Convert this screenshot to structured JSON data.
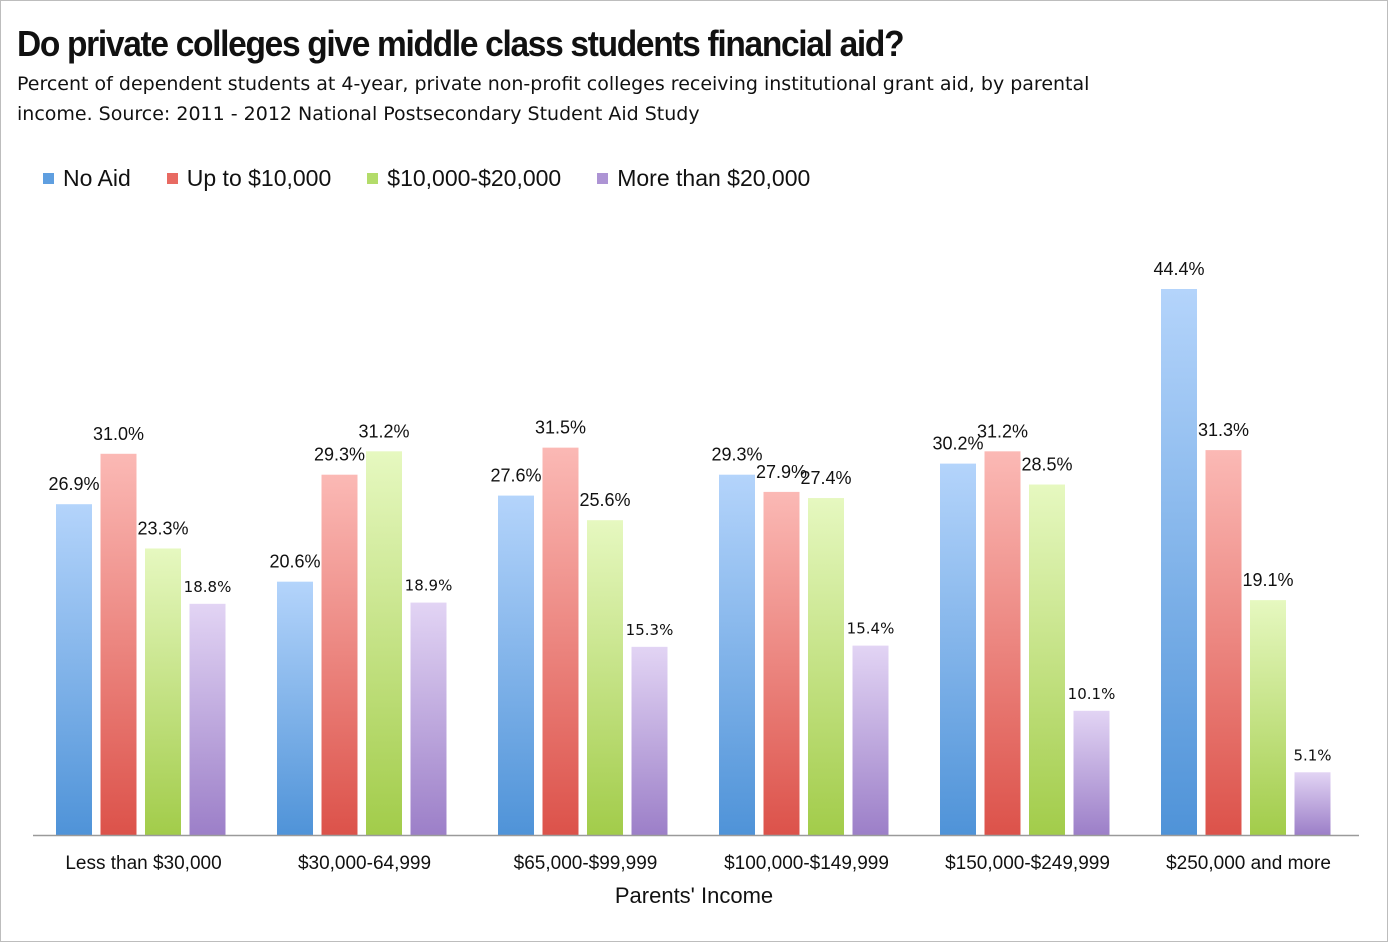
{
  "title": "Do private colleges give middle class students financial aid?",
  "subtitle": "Percent of dependent students at 4-year, private non-profit colleges receiving institutional grant aid, by parental income. Source: 2011 - 2012 National Postsecondary Student Aid Study",
  "chart_data": {
    "type": "bar",
    "title": "Do private colleges give middle class students financial aid?",
    "subtitle": "Percent of dependent students at 4-year, private non-profit colleges receiving institutional grant aid, by parental income. Source: 2011 - 2012 National Postsecondary Student Aid Study",
    "xlabel": "Parents' Income",
    "ylabel": "",
    "ylim": [
      0,
      50
    ],
    "grid": false,
    "legend_position": "top-left",
    "categories": [
      "Less than $30,000",
      "$30,000-64,999",
      "$65,000-$99,999",
      "$100,000-$149,999",
      "$150,000-$249,999",
      "$250,000 and more"
    ],
    "series": [
      {
        "name": "No Aid",
        "color_top": "#b4d4fb",
        "color_bottom": "#4f93d8",
        "values": [
          26.9,
          20.6,
          27.6,
          29.3,
          30.2,
          44.4
        ],
        "labels": [
          "26.9%",
          "20.6%",
          "27.6%",
          "29.3%",
          "30.2%",
          "44.4%"
        ]
      },
      {
        "name": "Up to $10,000",
        "color_top": "#fbb9b5",
        "color_bottom": "#dc524a",
        "values": [
          31.0,
          29.3,
          31.5,
          27.9,
          31.2,
          31.3
        ],
        "labels": [
          "31.0%",
          "29.3%",
          "31.5%",
          "27.9%",
          "31.2%",
          "31.3%"
        ]
      },
      {
        "name": "$10,000-$20,000",
        "color_top": "#e6f8c0",
        "color_bottom": "#a2cc4a",
        "values": [
          23.3,
          31.2,
          25.6,
          27.4,
          28.5,
          19.1
        ],
        "labels": [
          "23.3%",
          "31.2%",
          "25.6%",
          "27.4%",
          "28.5%",
          "19.1%"
        ]
      },
      {
        "name": "More than $20,000",
        "color_top": "#e2d4f4",
        "color_bottom": "#9c7fc8",
        "values": [
          18.8,
          18.9,
          15.3,
          15.4,
          10.1,
          5.1
        ],
        "labels": [
          "18.8%",
          "18.9%",
          "15.3%",
          "15.4%",
          "10.1%",
          "5.1%"
        ]
      }
    ],
    "legend_swatch_colors": [
      "#5f9fe0",
      "#e86a62",
      "#b3dc6a",
      "#ad94d4"
    ],
    "axis_color": "#9a9a9a"
  }
}
